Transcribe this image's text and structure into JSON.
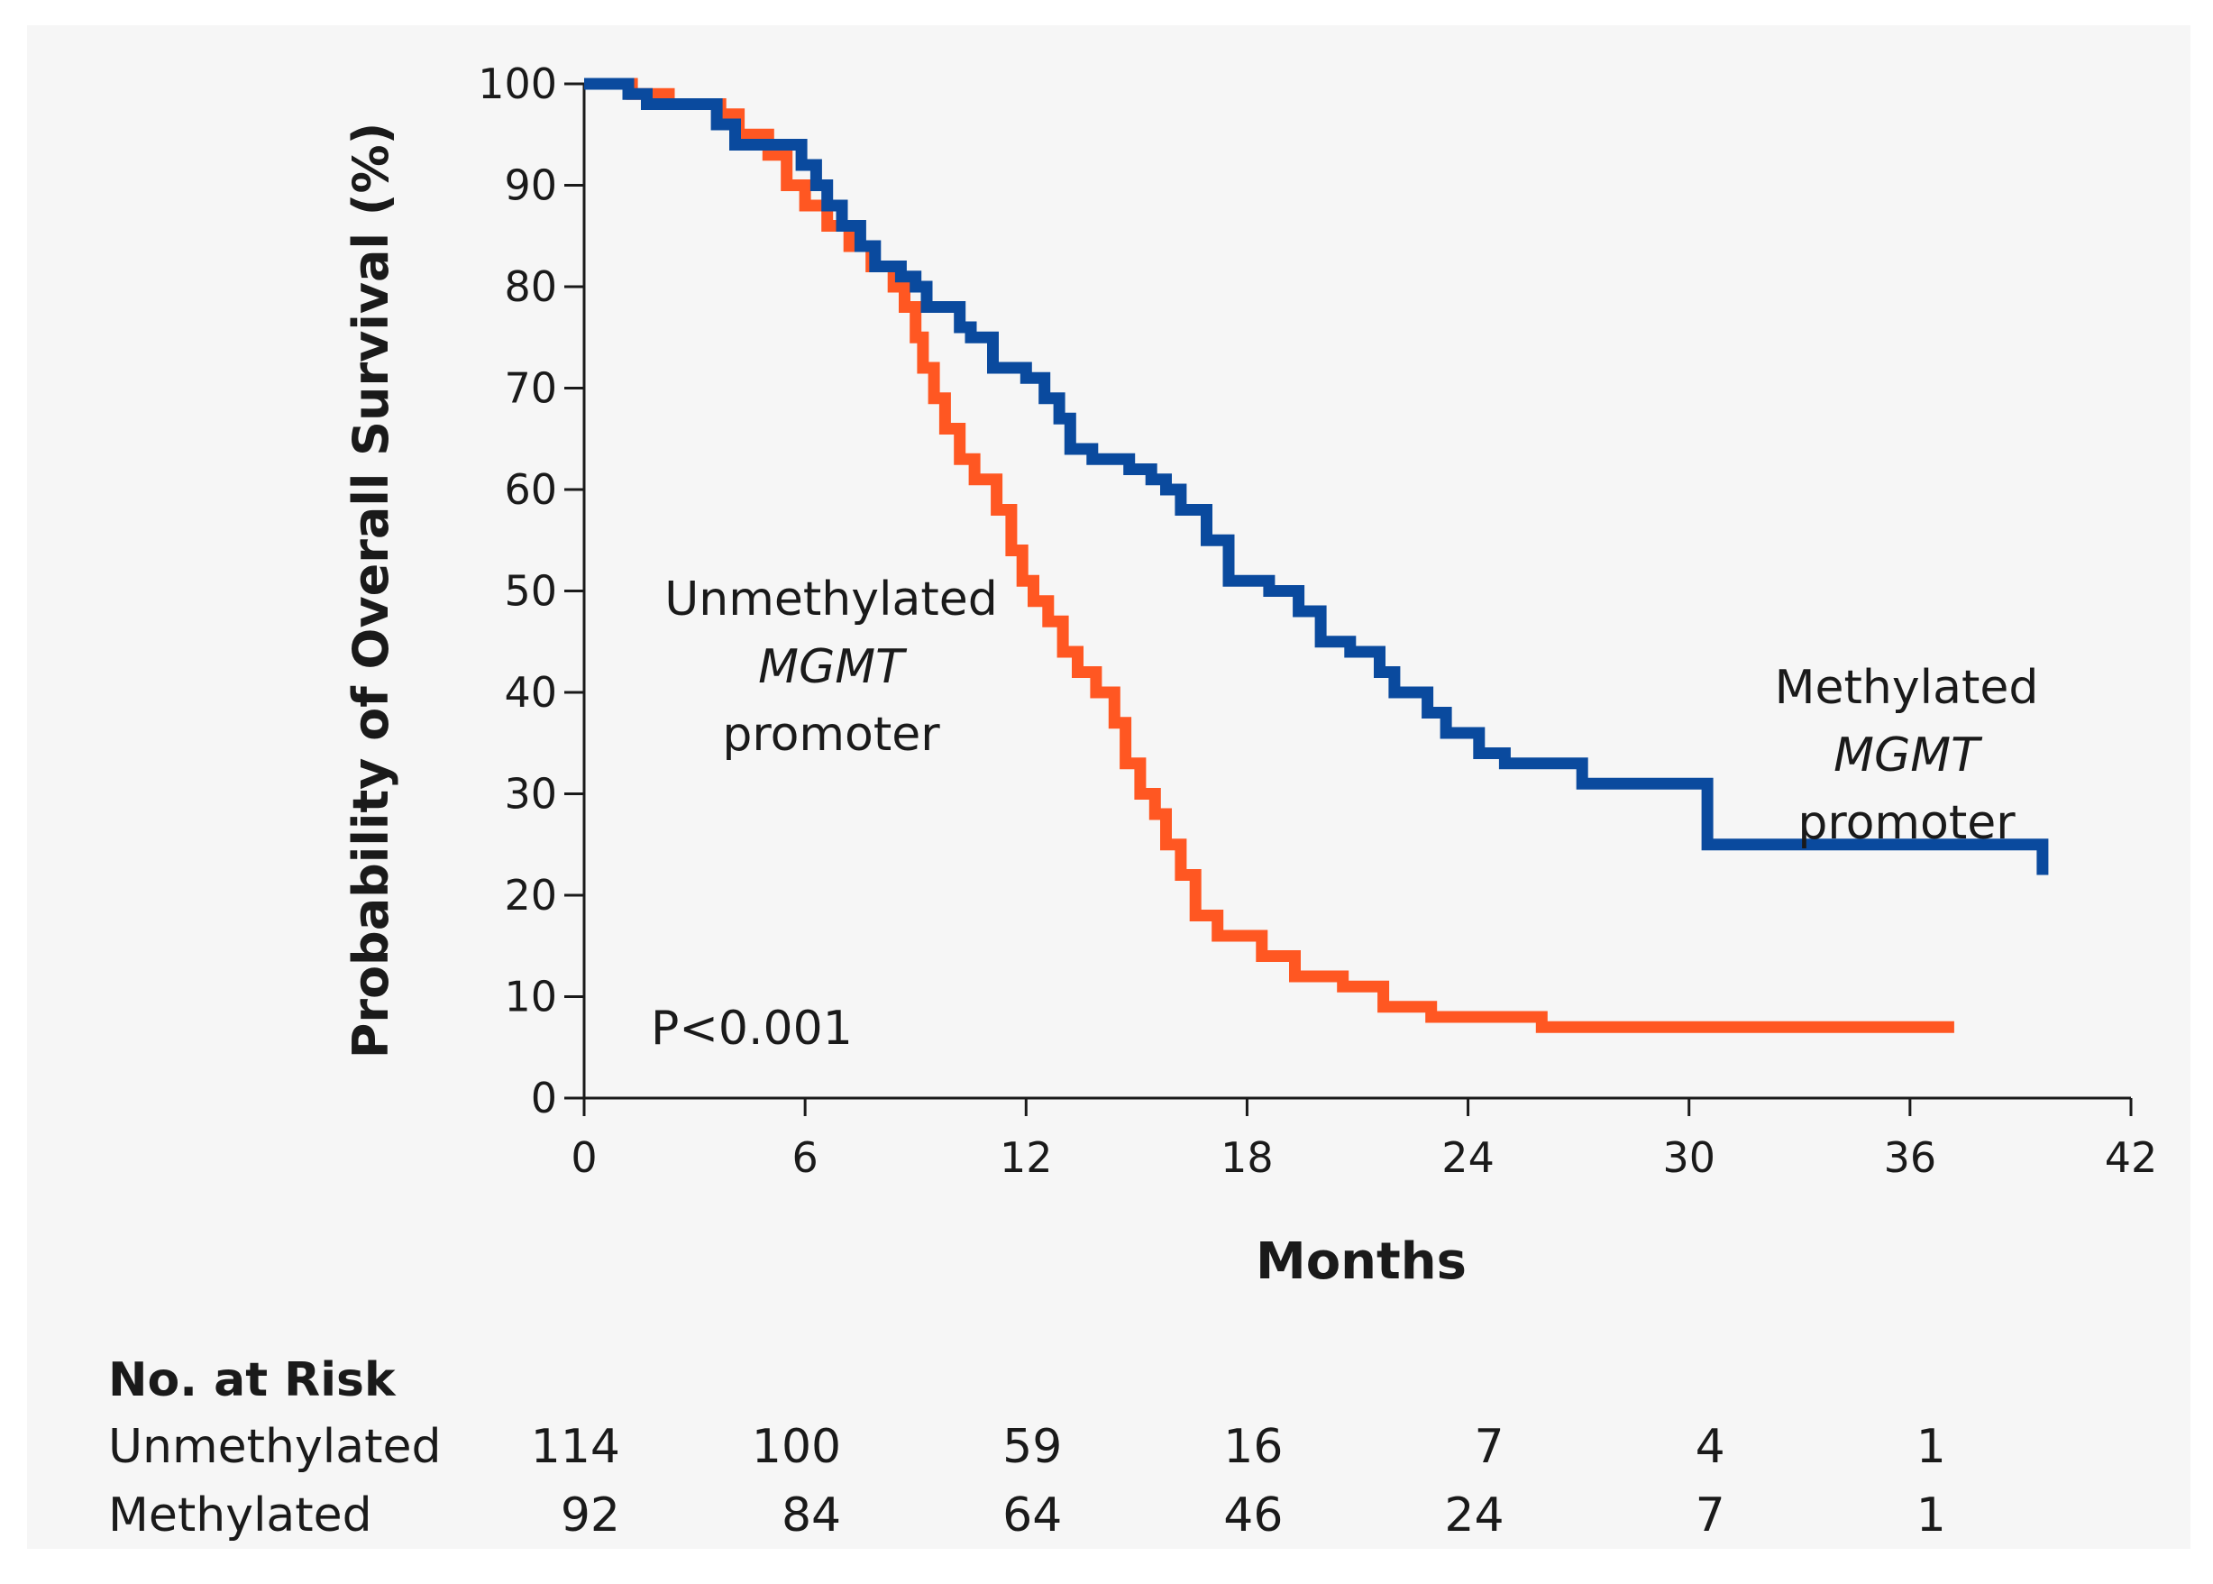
{
  "chart_data": {
    "type": "line",
    "step": true,
    "title": "",
    "xlabel": "Months",
    "ylabel": "Probability of Overall Survival (%)",
    "xlim": [
      0,
      42
    ],
    "ylim": [
      0,
      100
    ],
    "xticks": [
      0,
      6,
      12,
      18,
      24,
      30,
      36,
      42
    ],
    "yticks": [
      0,
      10,
      20,
      30,
      40,
      50,
      60,
      70,
      80,
      90,
      100
    ],
    "grid": false,
    "annotation": "P<0.001",
    "series": [
      {
        "name": "Methylated MGMT promoter",
        "label_lines": [
          "Methylated",
          "MGMT",
          "promoter"
        ],
        "color": "#0a4a9e",
        "x": [
          0,
          1.2,
          1.7,
          3.6,
          4.1,
          4.6,
          5.9,
          6.3,
          6.6,
          7.0,
          7.5,
          7.9,
          8.6,
          9.0,
          9.3,
          10.2,
          10.5,
          11.1,
          12.0,
          12.5,
          12.9,
          13.2,
          13.8,
          14.8,
          15.4,
          15.8,
          16.2,
          16.9,
          17.5,
          18.6,
          19.4,
          20.0,
          20.8,
          21.6,
          22.0,
          22.9,
          23.4,
          24.3,
          25.0,
          27.1,
          30.5,
          39.6
        ],
        "y": [
          100,
          99,
          98,
          96,
          94,
          94,
          92,
          90,
          88,
          86,
          84,
          82,
          81,
          80,
          78,
          76,
          75,
          72,
          71,
          69,
          67,
          64,
          63,
          62,
          61,
          60,
          58,
          55,
          51,
          50,
          48,
          45,
          44,
          42,
          40,
          38,
          36,
          34,
          33,
          31,
          25,
          22
        ]
      },
      {
        "name": "Unmethylated MGMT promoter",
        "label_lines": [
          "Unmethylated",
          "MGMT",
          "promoter"
        ],
        "color": "#ff5722",
        "x": [
          0,
          1.3,
          2.3,
          3.7,
          4.2,
          5.0,
          5.5,
          6.0,
          6.6,
          7.2,
          7.8,
          8.4,
          8.7,
          9.0,
          9.2,
          9.5,
          9.8,
          10.2,
          10.6,
          11.2,
          11.6,
          11.9,
          12.2,
          12.6,
          13.0,
          13.4,
          13.9,
          14.4,
          14.7,
          15.1,
          15.5,
          15.8,
          16.2,
          16.6,
          17.2,
          18.4,
          19.3,
          20.6,
          21.7,
          23.0,
          26.0,
          37.2
        ],
        "y": [
          100,
          99,
          98,
          97,
          95,
          93,
          90,
          88,
          86,
          84,
          82,
          80,
          78,
          75,
          72,
          69,
          66,
          63,
          61,
          58,
          54,
          51,
          49,
          47,
          44,
          42,
          40,
          37,
          33,
          30,
          28,
          25,
          22,
          18,
          16,
          14,
          12,
          11,
          9,
          8,
          7,
          7
        ]
      }
    ],
    "risk_table": {
      "title": "No. at Risk",
      "timepoints": [
        0,
        6,
        12,
        18,
        24,
        30,
        36
      ],
      "rows": [
        {
          "label": "Unmethylated",
          "values": [
            "114",
            "100",
            "59",
            "16",
            "7",
            "4",
            "1"
          ]
        },
        {
          "label": "Methylated",
          "values": [
            "92",
            "84",
            "64",
            "46",
            "24",
            "7",
            "1"
          ]
        }
      ]
    }
  }
}
